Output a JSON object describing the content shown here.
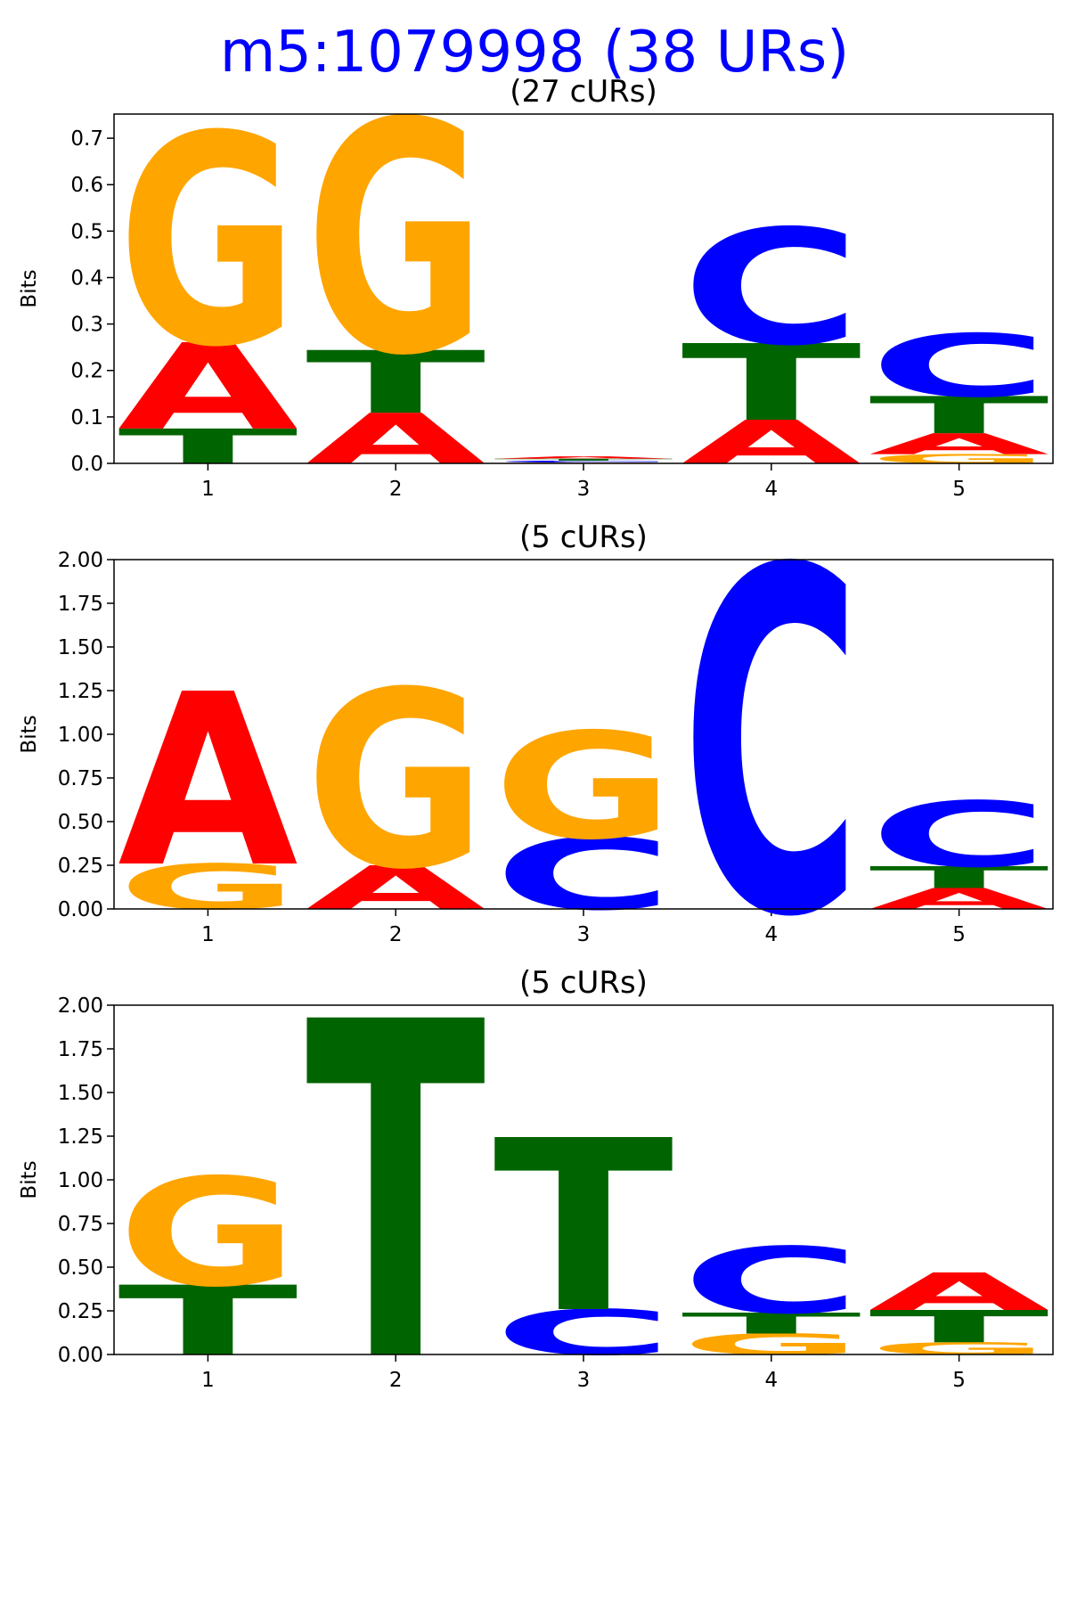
{
  "title": "m5:1079998 (38 URs)",
  "chart_data": [
    {
      "type": "logo",
      "title": "(27 cURs)",
      "y_label": "Bits",
      "x": [
        1,
        2,
        3,
        4,
        5
      ],
      "xlim": [
        0.5,
        5.5
      ],
      "xticks": [
        1,
        2,
        3,
        4,
        5
      ],
      "ylim": [
        0,
        0.752
      ],
      "yticks": [
        {
          "value": 0,
          "label": "0.0"
        },
        0.1,
        0.2,
        0.3,
        0.4,
        0.5,
        0.6,
        0.7
      ],
      "series": [
        {
          "name": "A",
          "color": "#ff0000",
          "values": [
            0.186,
            0.109,
            0.005,
            0.094,
            0.045
          ]
        },
        {
          "name": "C",
          "color": "#0000ff",
          "values": [
            0,
            0,
            0.004,
            0.249,
            0.135
          ]
        },
        {
          "name": "G",
          "color": "#ffa500",
          "values": [
            0.453,
            0.499,
            0.002,
            0,
            0.02
          ]
        },
        {
          "name": "T",
          "color": "#006400",
          "values": [
            0.075,
            0.135,
            0.004,
            0.165,
            0.08
          ]
        }
      ]
    },
    {
      "type": "logo",
      "title": "(5 cURs)",
      "y_label": "Bits",
      "x": [
        1,
        2,
        3,
        4,
        5
      ],
      "xlim": [
        0.5,
        5.5
      ],
      "xticks": [
        1,
        2,
        3,
        4,
        5
      ],
      "ylim": [
        0,
        2
      ],
      "yticks": [
        {
          "value": 0,
          "label": "0.00"
        },
        0.25,
        {
          "value": 0.5,
          "label": "0.50"
        },
        0.75,
        {
          "value": 1,
          "label": "1.00"
        },
        1.25,
        {
          "value": 1.5,
          "label": "1.50"
        },
        1.75,
        {
          "value": 2,
          "label": "2.00"
        }
      ],
      "series": [
        {
          "name": "A",
          "color": "#ff0000",
          "values": [
            0.99,
            0.25,
            0,
            0,
            0.12
          ]
        },
        {
          "name": "C",
          "color": "#0000ff",
          "values": [
            0,
            0,
            0.41,
            1.97,
            0.375
          ]
        },
        {
          "name": "G",
          "color": "#ffa500",
          "values": [
            0.26,
            1.015,
            0.61,
            0,
            0
          ]
        },
        {
          "name": "T",
          "color": "#006400",
          "values": [
            0,
            0,
            0,
            0,
            0.125
          ]
        }
      ]
    },
    {
      "type": "logo",
      "title": "(5 cURs)",
      "y_label": "Bits",
      "x": [
        1,
        2,
        3,
        4,
        5
      ],
      "xlim": [
        0.5,
        5.5
      ],
      "xticks": [
        1,
        2,
        3,
        4,
        5
      ],
      "ylim": [
        0,
        2
      ],
      "yticks": [
        {
          "value": 0,
          "label": "0.00"
        },
        0.25,
        {
          "value": 0.5,
          "label": "0.50"
        },
        0.75,
        {
          "value": 1,
          "label": "1.00"
        },
        1.25,
        {
          "value": 1.5,
          "label": "1.50"
        },
        1.75,
        {
          "value": 2,
          "label": "2.00"
        }
      ],
      "series": [
        {
          "name": "A",
          "color": "#ff0000",
          "values": [
            0,
            0,
            0,
            0,
            0.215
          ]
        },
        {
          "name": "C",
          "color": "#0000ff",
          "values": [
            0,
            0,
            0.26,
            0.38,
            0
          ]
        },
        {
          "name": "G",
          "color": "#ffa500",
          "values": [
            0.62,
            0,
            0,
            0.12,
            0.07
          ]
        },
        {
          "name": "T",
          "color": "#006400",
          "values": [
            0.4,
            1.93,
            0.985,
            0.12,
            0.185
          ]
        }
      ]
    }
  ]
}
